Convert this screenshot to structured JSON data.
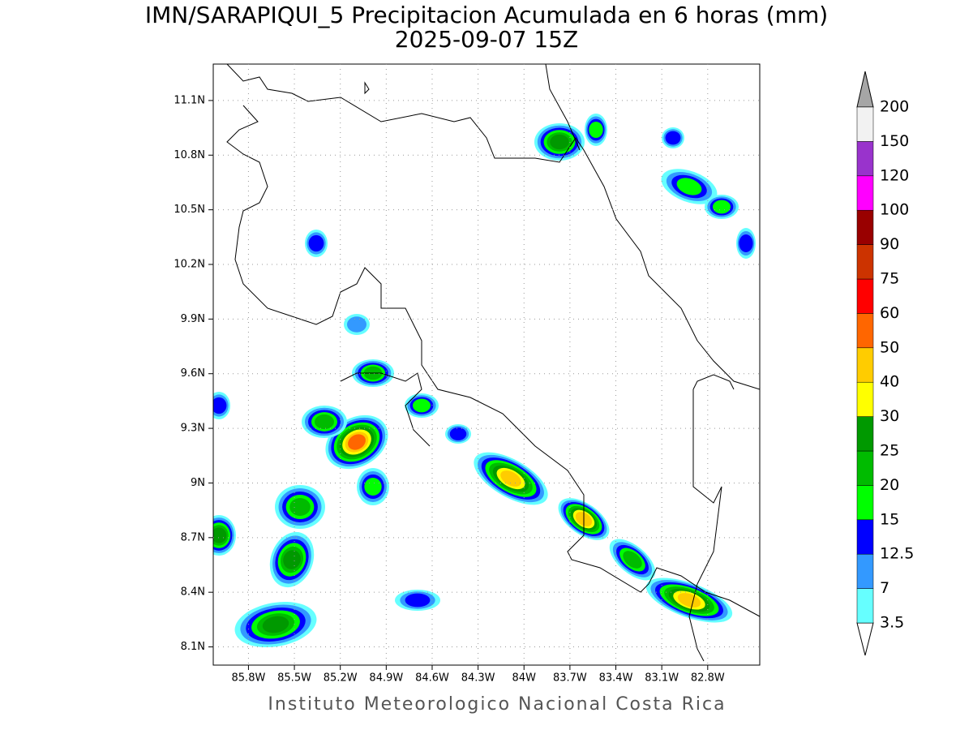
{
  "title": "IMN/SARAPIQUI_5 Precipitacion Acumulada en 6 horas (mm)",
  "subtitle": "2025-09-07 15Z",
  "footer": "Instituto Meteorologico Nacional Costa Rica",
  "map": {
    "xlim": [
      -86.03,
      -82.46
    ],
    "ylim": [
      8.0,
      11.3
    ],
    "xticks": [
      {
        "value": -85.8,
        "label": "85.8W"
      },
      {
        "value": -85.5,
        "label": "85.5W"
      },
      {
        "value": -85.2,
        "label": "85.2W"
      },
      {
        "value": -84.9,
        "label": "84.9W"
      },
      {
        "value": -84.6,
        "label": "84.6W"
      },
      {
        "value": -84.3,
        "label": "84.3W"
      },
      {
        "value": -84,
        "label": "84W"
      },
      {
        "value": -83.7,
        "label": "83.7W"
      },
      {
        "value": -83.4,
        "label": "83.4W"
      },
      {
        "value": -83.1,
        "label": "83.1W"
      },
      {
        "value": -82.8,
        "label": "82.8W"
      }
    ],
    "yticks": [
      {
        "value": 8.1,
        "label": "8.1N"
      },
      {
        "value": 8.4,
        "label": "8.4N"
      },
      {
        "value": 8.7,
        "label": "8.7N"
      },
      {
        "value": 9,
        "label": "9N"
      },
      {
        "value": 9.3,
        "label": "9.3N"
      },
      {
        "value": 9.6,
        "label": "9.6N"
      },
      {
        "value": 9.9,
        "label": "9.9N"
      },
      {
        "value": 10.2,
        "label": "10.2N"
      },
      {
        "value": 10.5,
        "label": "10.5N"
      },
      {
        "value": 10.8,
        "label": "10.8N"
      },
      {
        "value": 11.1,
        "label": "11.1N"
      }
    ],
    "grid": true
  },
  "colorbar": {
    "levels": [
      3.5,
      7,
      12.5,
      15,
      20,
      25,
      30,
      40,
      50,
      60,
      75,
      90,
      100,
      120,
      150,
      200
    ],
    "colors": [
      "#ffffff",
      "#66ffff",
      "#3399ff",
      "#0000ff",
      "#00ff00",
      "#00bb00",
      "#009900",
      "#ffff00",
      "#ffcc00",
      "#ff6600",
      "#ff0000",
      "#cc3300",
      "#990000",
      "#ff00ff",
      "#9933cc",
      "#f2f2f2",
      "#a6a6a6"
    ]
  }
}
